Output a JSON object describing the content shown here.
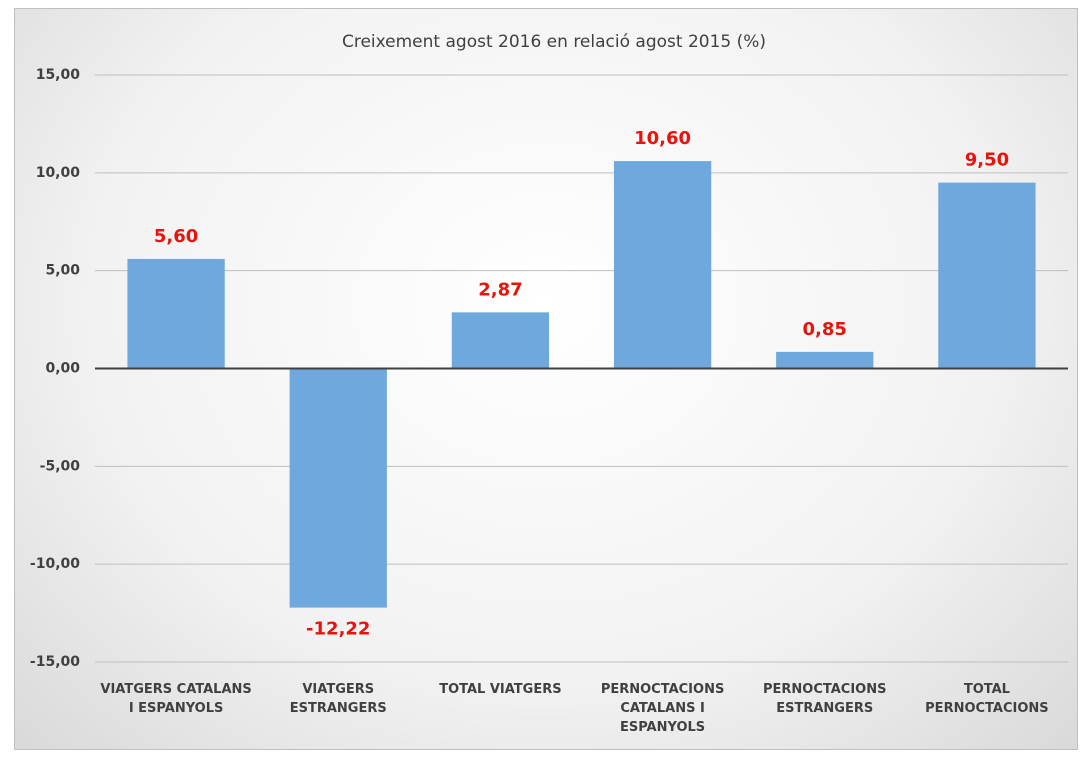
{
  "chart_data": {
    "type": "bar",
    "title": "Creixement agost 2016 en relació agost 2015 (%)",
    "categories": [
      "VIATGERS CATALANS I ESPANYOLS",
      "VIATGERS ESTRANGERS",
      "TOTAL VIATGERS",
      "PERNOCTACIONS CATALANS I ESPANYOLS",
      "PERNOCTACIONS ESTRANGERS",
      "TOTAL PERNOCTACIONS"
    ],
    "values": [
      5.6,
      -12.22,
      2.87,
      10.6,
      0.85,
      9.5
    ],
    "value_labels": [
      "5,60",
      "-12,22",
      "2,87",
      "10,60",
      "0,85",
      "9,50"
    ],
    "color": "#6fa8dc",
    "label_color": "#e8140c",
    "ylim": [
      -15,
      15
    ],
    "yticks": [
      {
        "value": -15,
        "label": "-15,00"
      },
      {
        "value": -10,
        "label": "-10,00"
      },
      {
        "value": -5,
        "label": "-5,00"
      },
      {
        "value": 0,
        "label": "0,00"
      },
      {
        "value": 5,
        "label": "5,00"
      },
      {
        "value": 10,
        "label": "10,00"
      },
      {
        "value": 15,
        "label": "15,00"
      }
    ],
    "grid": true
  }
}
